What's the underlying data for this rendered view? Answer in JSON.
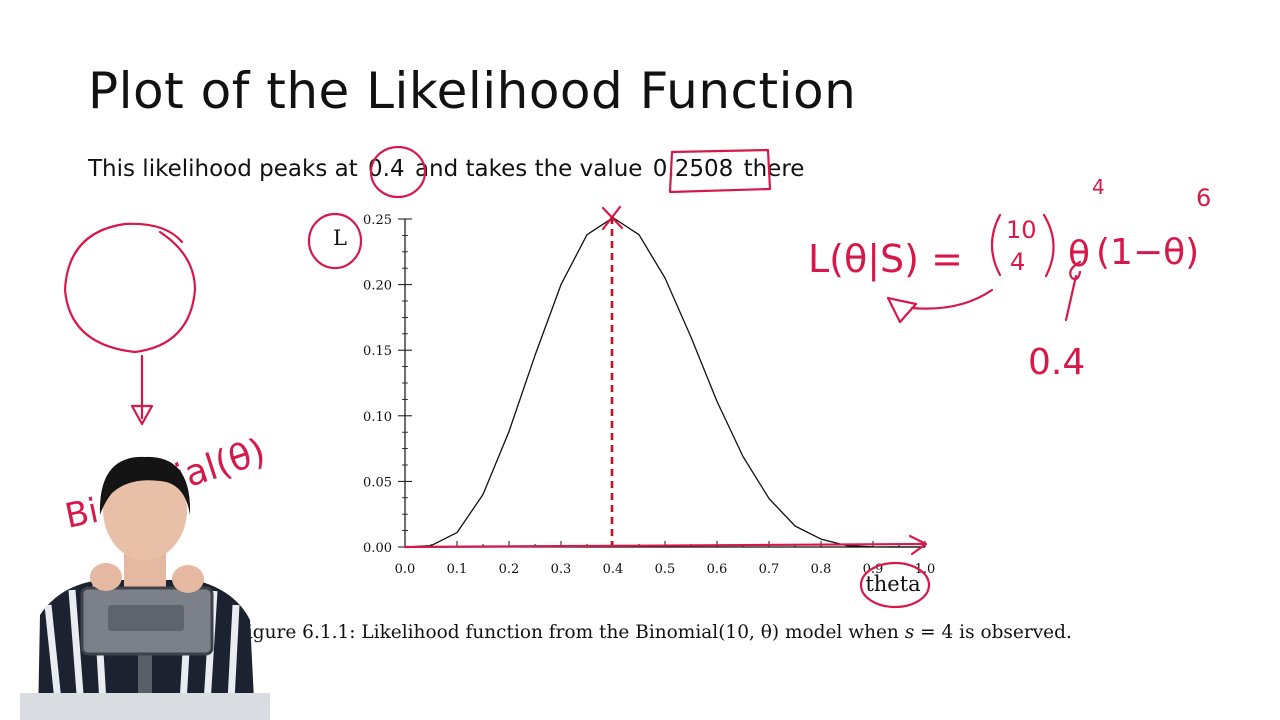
{
  "slide": {
    "title": "Plot of the Likelihood Function",
    "subtitle_pre": "This likelihood peaks at",
    "peak_value": "0.4",
    "subtitle_mid": "and takes the value",
    "peak_likelihood": "0.2508",
    "subtitle_post": "there"
  },
  "caption": {
    "pre": "Figure 6.1.1: Likelihood function from the Binomial",
    "args": "(10, θ)",
    "mid": " model when ",
    "var": "s",
    "eq": " = 4",
    "post": " is observed."
  },
  "chart_data": {
    "type": "line",
    "title": "",
    "xlabel": "theta",
    "ylabel": "L",
    "xlim": [
      0.0,
      1.0
    ],
    "ylim": [
      0.0,
      0.25
    ],
    "x_ticks": [
      "0.0",
      "0.1",
      "0.2",
      "0.3",
      "0.4",
      "0.5",
      "0.6",
      "0.7",
      "0.8",
      "0.9",
      "1.0"
    ],
    "y_ticks": [
      "0.00",
      "0.05",
      "0.10",
      "0.15",
      "0.20",
      "0.25"
    ],
    "x_tick_values": [
      0.0,
      0.1,
      0.2,
      0.3,
      0.4,
      0.5,
      0.6,
      0.7,
      0.8,
      0.9,
      1.0
    ],
    "y_tick_values": [
      0.0,
      0.05,
      0.1,
      0.15,
      0.2,
      0.25
    ],
    "series": [
      {
        "x": [
          0.0,
          0.05,
          0.1,
          0.15,
          0.2,
          0.25,
          0.3,
          0.35,
          0.4,
          0.45,
          0.5,
          0.55,
          0.6,
          0.65,
          0.7,
          0.75,
          0.8,
          0.85,
          0.9,
          0.95,
          1.0
        ],
        "y": [
          0.0,
          0.001,
          0.011,
          0.04,
          0.088,
          0.146,
          0.2,
          0.238,
          0.251,
          0.238,
          0.205,
          0.16,
          0.111,
          0.069,
          0.037,
          0.016,
          0.006,
          0.001,
          0.0001,
          0.0,
          0.0
        ]
      }
    ],
    "grid": false,
    "legend": "none",
    "line_color": "#111111",
    "annotation_color": "#d6194a"
  },
  "annotations": {
    "formula": "L(θ|S) = (10 4) θ^4 (1−θ)^6",
    "formula_lhs": "L(θ|S) =",
    "binom_top": "10",
    "binom_bottom": "4",
    "theta": "θ",
    "exp4": "4",
    "rest": "(1−θ)",
    "exp6": "6",
    "point_label": "0.4",
    "left_note": "Binomial(θ)",
    "left_note_a": "Bi",
    "left_note_b": "ial(θ)"
  }
}
